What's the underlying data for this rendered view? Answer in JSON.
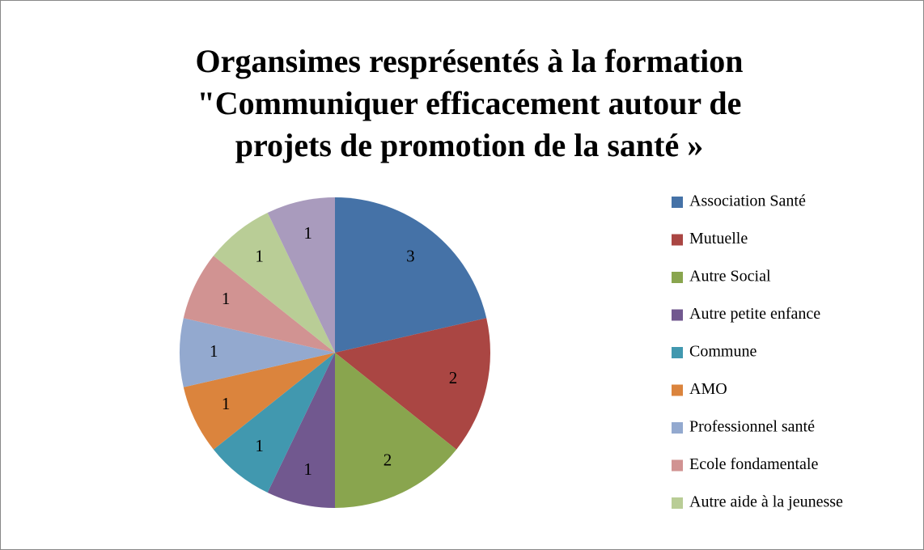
{
  "chart_data": {
    "type": "pie",
    "title": [
      "Organsimes resprésentés à la formation",
      "\"Communiquer efficacement autour de",
      "projets de promotion de la santé »"
    ],
    "categories": [
      "Association Santé",
      "Mutuelle",
      "Autre Social",
      "Autre petite enfance",
      "Commune",
      "AMO",
      "Professionnel santé",
      "Ecole fondamentale",
      "Autre aide à la jeunesse",
      null
    ],
    "values": [
      3,
      2,
      2,
      1,
      1,
      1,
      1,
      1,
      1,
      1
    ],
    "colors": [
      "#4572a7",
      "#aa4643",
      "#89a54e",
      "#71588f",
      "#4198af",
      "#db843d",
      "#93a9cf",
      "#d19392",
      "#b9cd96",
      "#a99bbd"
    ],
    "legend": "right"
  }
}
